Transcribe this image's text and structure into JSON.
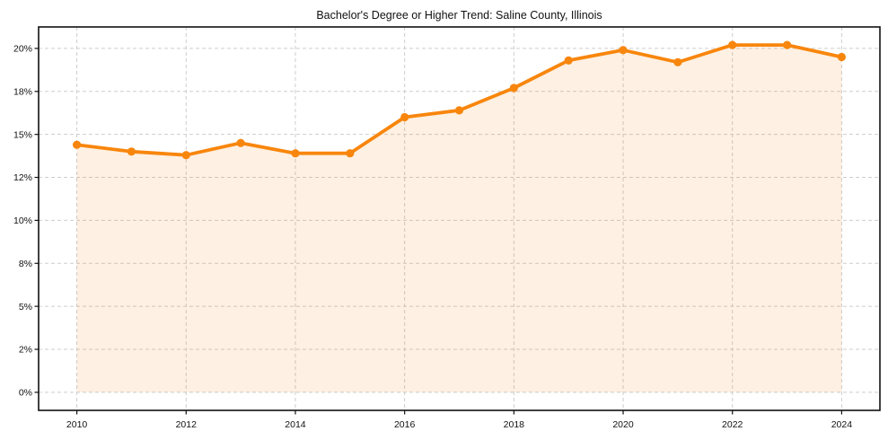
{
  "chart_data": {
    "type": "area",
    "title": "Bachelor's Degree or Higher Trend: Saline County, Illinois",
    "x": [
      2010,
      2011,
      2012,
      2013,
      2014,
      2015,
      2016,
      2017,
      2018,
      2019,
      2020,
      2021,
      2022,
      2023,
      2024
    ],
    "series": [
      {
        "name": "Bachelor's Degree or Higher (%)",
        "values": [
          14.4,
          14.0,
          13.8,
          14.5,
          13.9,
          13.9,
          16.0,
          16.4,
          17.7,
          19.3,
          19.9,
          19.2,
          20.2,
          20.2,
          19.5
        ]
      }
    ],
    "xlabel": "",
    "ylabel": "",
    "xlim": [
      2009.3,
      2024.7
    ],
    "ylim": [
      -1.05,
      21.25
    ],
    "x_tick_values": [
      2010,
      2012,
      2014,
      2016,
      2018,
      2020,
      2022,
      2024
    ],
    "x_tick_labels": [
      "2010",
      "2012",
      "2014",
      "2016",
      "2018",
      "2020",
      "2022",
      "2024"
    ],
    "y_tick_values": [
      0,
      2.5,
      5,
      7.5,
      10,
      12.5,
      15,
      17.5,
      20
    ],
    "y_tick_labels": [
      "0%",
      "2%",
      "5%",
      "8%",
      "10%",
      "12%",
      "15%",
      "18%",
      "20%"
    ],
    "grid": true,
    "legend": "none",
    "fill_baseline": 0,
    "colors": {
      "line": "#f8860d",
      "marker": "#f8860d",
      "fill": "rgba(248,134,13,0.12)",
      "grid": "#cdcdcd",
      "spine": "#111111",
      "tick": "#111111",
      "text": "#111111",
      "background": "#ffffff"
    }
  }
}
